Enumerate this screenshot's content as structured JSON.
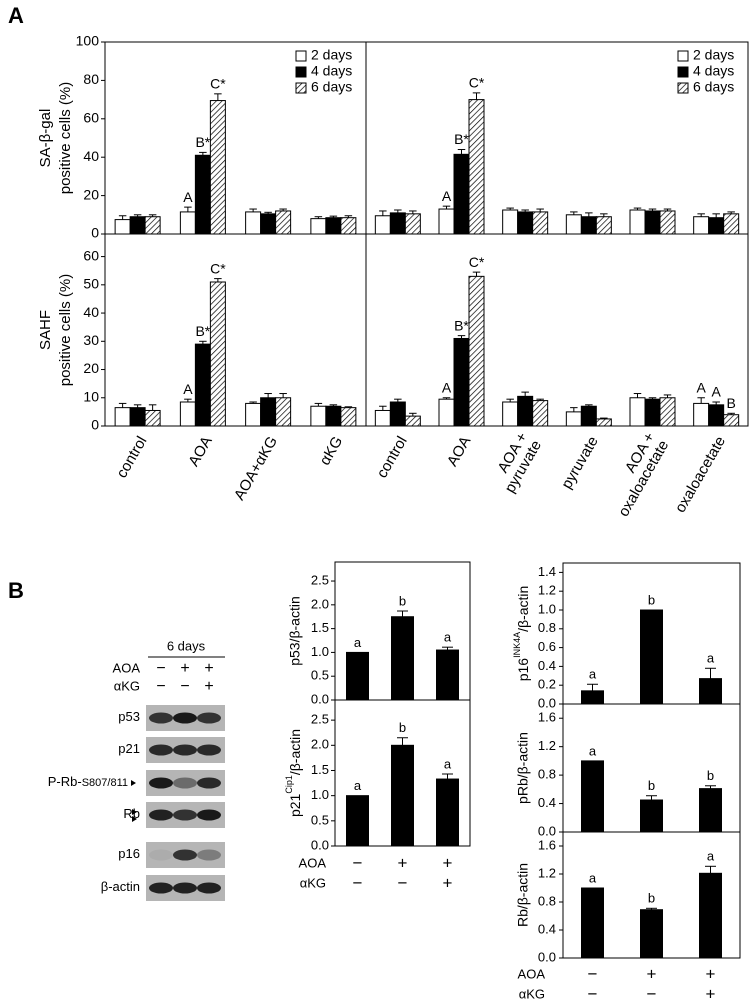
{
  "panel_labels": [
    "A",
    "B"
  ],
  "blot": {
    "title": "6 days",
    "treatments": [
      {
        "label": "AOA",
        "signs": [
          "−",
          "+",
          "+"
        ]
      },
      {
        "label": "αKG",
        "signs": [
          "−",
          "−",
          "+"
        ]
      }
    ],
    "rows": [
      {
        "label": "p53"
      },
      {
        "label": "p21"
      },
      {
        "label": "P-Rb-",
        "sub": "S807/811"
      },
      {
        "label": "Rb"
      },
      {
        "label": "p16"
      },
      {
        "label": "β-actin"
      }
    ]
  },
  "chart_data": [
    {
      "type": "bar",
      "ylabel": [
        "SA-β-gal",
        "positive cells (%)"
      ],
      "ylim": [
        0,
        100
      ],
      "yticks": [
        0,
        20,
        40,
        60,
        80,
        100
      ],
      "legend": "upper right",
      "series": [
        {
          "name": "2 days",
          "color": "#ffffff",
          "values": [
            7.5,
            11.5,
            11.5,
            8
          ],
          "errors": [
            2,
            2.5,
            1.5,
            1
          ],
          "annotations": [
            null,
            "A",
            null,
            null
          ]
        },
        {
          "name": "4 days",
          "color": "#000000",
          "values": [
            9,
            41,
            10.5,
            8.5
          ],
          "errors": [
            1,
            1.5,
            0.8,
            0.8
          ],
          "annotations": [
            null,
            "B*",
            null,
            null
          ]
        },
        {
          "name": "6 days",
          "color": "#ffffff",
          "pattern": "hatch",
          "values": [
            9,
            69.5,
            12,
            8.5
          ],
          "errors": [
            1,
            3.5,
            1,
            1
          ],
          "annotations": [
            null,
            "C*",
            null,
            null
          ]
        }
      ]
    },
    {
      "type": "bar",
      "ylim": [
        0,
        100
      ],
      "legend": "upper right",
      "series": [
        {
          "name": "2 days",
          "color": "#ffffff",
          "values": [
            9.5,
            13,
            12.5,
            10,
            12.5,
            9
          ],
          "errors": [
            2.5,
            1.5,
            1,
            1.5,
            1,
            1.5
          ],
          "annotations": [
            null,
            "A",
            null,
            null,
            null,
            null
          ]
        },
        {
          "name": "4 days",
          "color": "#000000",
          "values": [
            11,
            41.5,
            11.5,
            9,
            12,
            8.5
          ],
          "errors": [
            1.5,
            2.5,
            1,
            2,
            1,
            2
          ],
          "annotations": [
            null,
            "B*",
            null,
            null,
            null,
            null
          ]
        },
        {
          "name": "6 days",
          "color": "#ffffff",
          "pattern": "hatch",
          "values": [
            10.5,
            70,
            11.5,
            9,
            12,
            10.5
          ],
          "errors": [
            1.5,
            3.5,
            1.5,
            1.5,
            1,
            1
          ],
          "annotations": [
            null,
            "C*",
            null,
            null,
            null,
            null
          ]
        }
      ]
    },
    {
      "type": "bar",
      "ylabel": [
        "SAHF",
        "positive cells (%)"
      ],
      "ylim": [
        0,
        68
      ],
      "yticks": [
        0,
        10,
        20,
        30,
        40,
        50,
        60
      ],
      "categories": [
        [
          "control"
        ],
        [
          "AOA"
        ],
        [
          "AOA+αKG"
        ],
        [
          "αKG"
        ]
      ],
      "series": [
        {
          "color": "#ffffff",
          "values": [
            6.5,
            8.5,
            8,
            7
          ],
          "errors": [
            1.5,
            1,
            0.5,
            1
          ],
          "annotations": [
            null,
            "A",
            null,
            null
          ]
        },
        {
          "color": "#000000",
          "values": [
            6.5,
            29,
            10,
            7
          ],
          "errors": [
            1,
            1,
            1.5,
            0.5
          ],
          "annotations": [
            null,
            "B*",
            null,
            null
          ]
        },
        {
          "color": "#ffffff",
          "pattern": "hatch",
          "values": [
            5.5,
            51,
            10,
            6.5
          ],
          "errors": [
            2,
            1.2,
            1.5,
            0.3
          ],
          "annotations": [
            null,
            "C*",
            null,
            null
          ]
        }
      ]
    },
    {
      "type": "bar",
      "ylim": [
        0,
        68
      ],
      "categories": [
        [
          "control"
        ],
        [
          "AOA"
        ],
        [
          "AOA +",
          "pyruvate"
        ],
        [
          "pyruvate"
        ],
        [
          "AOA +",
          "oxaloacetate"
        ],
        [
          "oxaloacetate"
        ]
      ],
      "series": [
        {
          "color": "#ffffff",
          "values": [
            5.5,
            9.5,
            8.5,
            5,
            10,
            8
          ],
          "errors": [
            1.5,
            0.5,
            1,
            1.5,
            1.5,
            2
          ],
          "annotations": [
            null,
            "A",
            null,
            null,
            null,
            "A"
          ]
        },
        {
          "color": "#000000",
          "values": [
            8.5,
            31,
            10.5,
            7,
            9.5,
            7.5
          ],
          "errors": [
            1,
            1,
            1.5,
            0.5,
            0.5,
            1
          ],
          "annotations": [
            null,
            "B*",
            null,
            null,
            null,
            "A"
          ]
        },
        {
          "color": "#ffffff",
          "pattern": "hatch",
          "values": [
            3.5,
            53,
            9,
            2.5,
            10,
            4
          ],
          "errors": [
            1,
            1.5,
            0.5,
            0.3,
            1,
            0.5
          ],
          "annotations": [
            null,
            "C*",
            null,
            null,
            null,
            "B"
          ]
        }
      ]
    },
    {
      "type": "bar",
      "ylabel": "p53/β-actin",
      "ylim": [
        0,
        2.9
      ],
      "yticks": [
        {
          "value": 0,
          "label": "0.0"
        },
        0.5,
        {
          "value": 1,
          "label": "1.0"
        },
        1.5,
        {
          "value": 2,
          "label": "2.0"
        },
        2.5
      ],
      "color": "#000000",
      "values": [
        1,
        1.75,
        1.05
      ],
      "errors": [
        null,
        0.12,
        0.06
      ],
      "annotations": [
        "a",
        "b",
        "a"
      ]
    },
    {
      "type": "bar",
      "ylabel": {
        "main": "p21",
        "sup": "Cip1",
        "after": "/β-actin"
      },
      "ylim": [
        0,
        2.9
      ],
      "yticks": [
        {
          "value": 0,
          "label": "0.0"
        },
        0.5,
        {
          "value": 1,
          "label": "1.0"
        },
        1.5,
        {
          "value": 2,
          "label": "2.0"
        },
        2.5
      ],
      "color": "#000000",
      "values": [
        1,
        2,
        1.33
      ],
      "errors": [
        null,
        0.15,
        0.1
      ],
      "annotations": [
        "a",
        "b",
        "a"
      ],
      "treatments": [
        {
          "label": "AOA",
          "signs": [
            "−",
            "+",
            "+"
          ]
        },
        {
          "label": "αKG",
          "signs": [
            "−",
            "−",
            "+"
          ]
        }
      ]
    },
    {
      "type": "bar",
      "ylabel": {
        "main": "p16",
        "sup": "INK4A",
        "after": "/β-actin"
      },
      "ylim": [
        0,
        1.5
      ],
      "yticks": [
        {
          "value": 0,
          "label": "0.0"
        },
        0.2,
        0.4,
        0.6,
        0.8,
        {
          "value": 1,
          "label": "1.0"
        },
        1.2,
        1.4
      ],
      "color": "#000000",
      "values": [
        0.14,
        1,
        0.27
      ],
      "errors": [
        0.07,
        null,
        0.11
      ],
      "annotations": [
        "a",
        "b",
        "a"
      ]
    },
    {
      "type": "bar",
      "ylabel": "pRb/β-actin",
      "ylim": [
        0,
        1.8
      ],
      "yticks": [
        {
          "value": 0,
          "label": "0.0"
        },
        0.4,
        0.8,
        1.2,
        1.6
      ],
      "color": "#000000",
      "values": [
        1,
        0.45,
        0.61
      ],
      "errors": [
        null,
        0.06,
        0.04
      ],
      "annotations": [
        "a",
        "b",
        "b"
      ]
    },
    {
      "type": "bar",
      "ylabel": "Rb/β-actin",
      "ylim": [
        0,
        1.8
      ],
      "yticks": [
        {
          "value": 0,
          "label": "0.0"
        },
        0.4,
        0.8,
        1.2,
        1.6
      ],
      "color": "#000000",
      "values": [
        1,
        0.69,
        1.21
      ],
      "errors": [
        null,
        0.02,
        0.1
      ],
      "annotations": [
        "a",
        "b",
        "a"
      ],
      "treatments": [
        {
          "label": "AOA",
          "signs": [
            "−",
            "+",
            "+"
          ]
        },
        {
          "label": "αKG",
          "signs": [
            "−",
            "−",
            "+"
          ]
        }
      ]
    }
  ]
}
